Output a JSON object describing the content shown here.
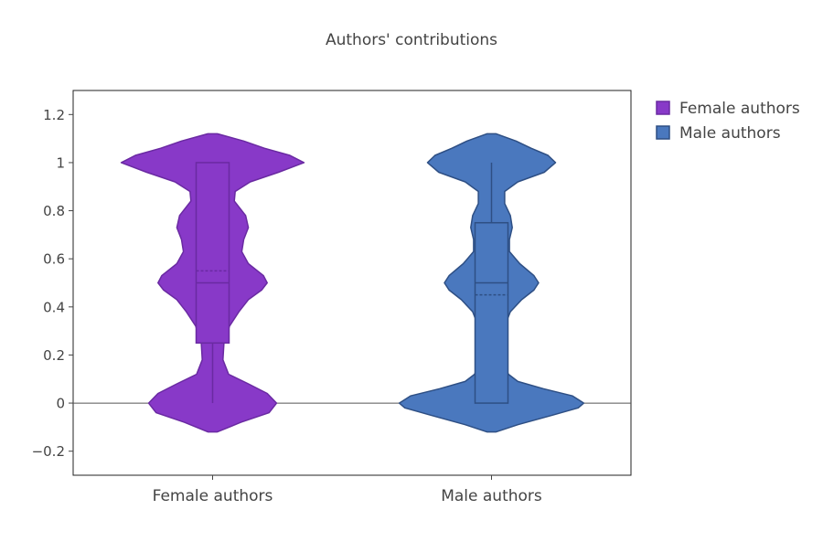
{
  "chart_data": {
    "type": "violin",
    "title": "Authors' contributions",
    "xlabel": "",
    "ylabel": "",
    "ylim": [
      -0.3,
      1.3
    ],
    "yticks": [
      -0.2,
      0,
      0.2,
      0.4,
      0.6,
      0.8,
      1,
      1.2
    ],
    "ytick_labels": [
      "−0.2",
      "0",
      "0.2",
      "0.4",
      "0.6",
      "0.8",
      "1",
      "1.2"
    ],
    "categories": [
      "Female authors",
      "Male authors"
    ],
    "legend_position": "top-right",
    "grid": false,
    "series": [
      {
        "name": "Female authors",
        "color": "#8839c8",
        "stroke": "#6a2aa2",
        "box": {
          "q1": 0.25,
          "median": 0.5,
          "q3": 1.0,
          "lower_whisker": 0.0,
          "upper_whisker": 1.0,
          "mean": 0.55
        },
        "density": [
          [
            -0.12,
            0.05
          ],
          [
            -0.08,
            0.3
          ],
          [
            -0.04,
            0.6
          ],
          [
            0.0,
            0.68
          ],
          [
            0.04,
            0.58
          ],
          [
            0.08,
            0.38
          ],
          [
            0.12,
            0.17
          ],
          [
            0.18,
            0.11
          ],
          [
            0.25,
            0.12
          ],
          [
            0.32,
            0.18
          ],
          [
            0.38,
            0.28
          ],
          [
            0.43,
            0.38
          ],
          [
            0.47,
            0.52
          ],
          [
            0.5,
            0.58
          ],
          [
            0.53,
            0.54
          ],
          [
            0.58,
            0.38
          ],
          [
            0.63,
            0.31
          ],
          [
            0.68,
            0.33
          ],
          [
            0.73,
            0.38
          ],
          [
            0.78,
            0.35
          ],
          [
            0.84,
            0.23
          ],
          [
            0.88,
            0.24
          ],
          [
            0.92,
            0.4
          ],
          [
            0.96,
            0.7
          ],
          [
            1.0,
            0.97
          ],
          [
            1.03,
            0.82
          ],
          [
            1.06,
            0.55
          ],
          [
            1.09,
            0.33
          ],
          [
            1.12,
            0.05
          ]
        ]
      },
      {
        "name": "Male authors",
        "color": "#4a78be",
        "stroke": "#2e4f84",
        "box": {
          "q1": 0.0,
          "median": 0.5,
          "q3": 0.75,
          "lower_whisker": 0.0,
          "upper_whisker": 1.0,
          "mean": 0.45
        },
        "density": [
          [
            -0.12,
            0.05
          ],
          [
            -0.09,
            0.28
          ],
          [
            -0.05,
            0.65
          ],
          [
            -0.02,
            0.92
          ],
          [
            0.0,
            0.98
          ],
          [
            0.03,
            0.86
          ],
          [
            0.06,
            0.55
          ],
          [
            0.09,
            0.28
          ],
          [
            0.12,
            0.18
          ],
          [
            0.17,
            0.13
          ],
          [
            0.22,
            0.13
          ],
          [
            0.28,
            0.15
          ],
          [
            0.34,
            0.16
          ],
          [
            0.38,
            0.2
          ],
          [
            0.43,
            0.32
          ],
          [
            0.47,
            0.45
          ],
          [
            0.5,
            0.5
          ],
          [
            0.53,
            0.45
          ],
          [
            0.58,
            0.3
          ],
          [
            0.63,
            0.19
          ],
          [
            0.68,
            0.19
          ],
          [
            0.73,
            0.22
          ],
          [
            0.78,
            0.2
          ],
          [
            0.83,
            0.14
          ],
          [
            0.88,
            0.14
          ],
          [
            0.92,
            0.28
          ],
          [
            0.96,
            0.56
          ],
          [
            1.0,
            0.68
          ],
          [
            1.03,
            0.6
          ],
          [
            1.06,
            0.42
          ],
          [
            1.09,
            0.26
          ],
          [
            1.12,
            0.05
          ]
        ]
      }
    ]
  }
}
